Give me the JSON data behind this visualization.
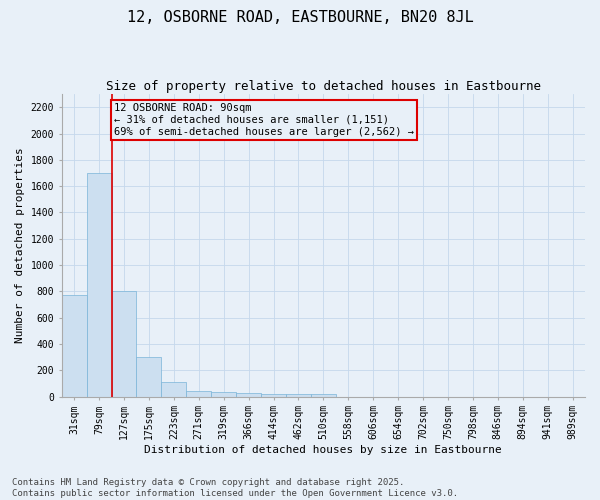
{
  "title": "12, OSBORNE ROAD, EASTBOURNE, BN20 8JL",
  "subtitle": "Size of property relative to detached houses in Eastbourne",
  "xlabel": "Distribution of detached houses by size in Eastbourne",
  "ylabel": "Number of detached properties",
  "categories": [
    "31sqm",
    "79sqm",
    "127sqm",
    "175sqm",
    "223sqm",
    "271sqm",
    "319sqm",
    "366sqm",
    "414sqm",
    "462sqm",
    "510sqm",
    "558sqm",
    "606sqm",
    "654sqm",
    "702sqm",
    "750sqm",
    "798sqm",
    "846sqm",
    "894sqm",
    "941sqm",
    "989sqm"
  ],
  "values": [
    775,
    1700,
    800,
    300,
    110,
    40,
    35,
    30,
    20,
    20,
    20,
    0,
    0,
    0,
    0,
    0,
    0,
    0,
    0,
    0,
    0
  ],
  "bar_color": "#ccdff0",
  "bar_edge_color": "#7ab4d8",
  "grid_color": "#c5d8ec",
  "background_color": "#e8f0f8",
  "annotation_line1": "12 OSBORNE ROAD: 90sqm",
  "annotation_line2": "← 31% of detached houses are smaller (1,151)",
  "annotation_line3": "69% of semi-detached houses are larger (2,562) →",
  "annotation_box_color": "#dd0000",
  "vline_color": "#dd0000",
  "ylim": [
    0,
    2300
  ],
  "yticks": [
    0,
    200,
    400,
    600,
    800,
    1000,
    1200,
    1400,
    1600,
    1800,
    2000,
    2200
  ],
  "footer_line1": "Contains HM Land Registry data © Crown copyright and database right 2025.",
  "footer_line2": "Contains public sector information licensed under the Open Government Licence v3.0.",
  "title_fontsize": 11,
  "subtitle_fontsize": 9,
  "xlabel_fontsize": 8,
  "ylabel_fontsize": 8,
  "tick_fontsize": 7,
  "annotation_fontsize": 7.5,
  "footer_fontsize": 6.5
}
